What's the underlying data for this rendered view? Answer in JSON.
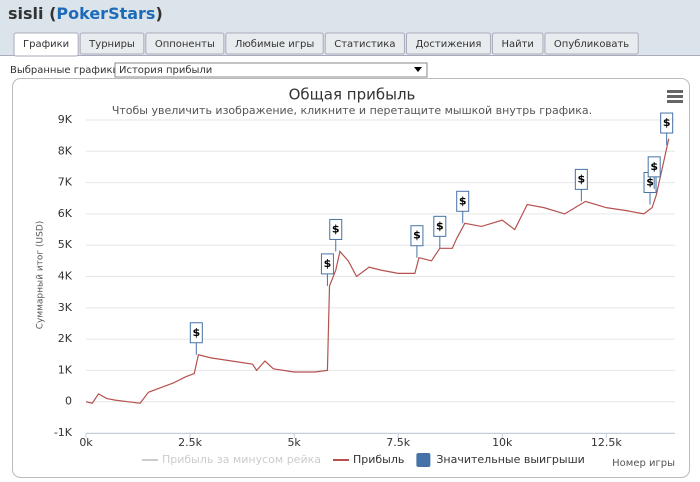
{
  "header": {
    "parts": [
      "sisli (",
      "PokerStars",
      ")"
    ]
  },
  "tabs": {
    "items": [
      "Графики",
      "Турниры",
      "Оппоненты",
      "Любимые игры",
      "Статистика",
      "Достижения",
      "Найти",
      "Опубликовать"
    ],
    "active": 0
  },
  "selector": {
    "label": "Выбранные графики:",
    "value": "История прибыли"
  },
  "chart_data": {
    "type": "line",
    "title": "Общая прибыль",
    "subtitle": "Чтобы увеличить изображение, кликните и перетащите мышкой внутрь графика.",
    "y_label": "Суммарный итог (USD)",
    "x_label": "Номер игры",
    "xlim": [
      0,
      14150
    ],
    "ylim": [
      -1000,
      9000
    ],
    "xticks": [
      {
        "value": 0,
        "label": "0k"
      },
      {
        "value": 2500,
        "label": "2.5k"
      },
      {
        "value": 5000,
        "label": "5k"
      },
      {
        "value": 7500,
        "label": "7.5k"
      },
      {
        "value": 10000,
        "label": "10k"
      },
      {
        "value": 12500,
        "label": "12.5k"
      }
    ],
    "yticks": [
      {
        "value": -1000,
        "label": "-1K"
      },
      0,
      {
        "value": 1000,
        "label": "1K"
      },
      {
        "value": 2000,
        "label": "2K"
      },
      {
        "value": 3000,
        "label": "3K"
      },
      {
        "value": 4000,
        "label": "4K"
      },
      {
        "value": 5000,
        "label": "5K"
      },
      {
        "value": 6000,
        "label": "6K"
      },
      {
        "value": 7000,
        "label": "7K"
      },
      {
        "value": 8000,
        "label": "8K"
      },
      {
        "value": 9000,
        "label": "9K"
      }
    ],
    "grid": true,
    "series": [
      {
        "name": "Прибыль за минусом рейка",
        "color": "#cccccc"
      },
      {
        "name": "Прибыль",
        "color": "#b5524f",
        "x": [
          0,
          150,
          300,
          500,
          700,
          1000,
          1300,
          1500,
          1800,
          2100,
          2400,
          2600,
          2700,
          3000,
          3500,
          4000,
          4100,
          4300,
          4500,
          5000,
          5500,
          5800,
          5850,
          6000,
          6100,
          6300,
          6500,
          6800,
          7100,
          7500,
          7900,
          8000,
          8300,
          8500,
          8800,
          8900,
          9100,
          9500,
          10000,
          10300,
          10600,
          11000,
          11500,
          12000,
          12500,
          13000,
          13400,
          13600,
          13700,
          13850,
          14000
        ],
        "values": [
          0,
          -50,
          250,
          100,
          50,
          0,
          -50,
          300,
          450,
          600,
          800,
          900,
          1500,
          1400,
          1300,
          1200,
          1000,
          1300,
          1050,
          950,
          950,
          1000,
          3700,
          4200,
          4800,
          4500,
          4000,
          4300,
          4200,
          4100,
          4100,
          4600,
          4500,
          4900,
          4900,
          5200,
          5700,
          5600,
          5800,
          5500,
          6300,
          6200,
          6000,
          6400,
          6200,
          6100,
          6000,
          6200,
          6600,
          7500,
          8400
        ]
      }
    ],
    "flags": {
      "name": "Значительные выигрыши",
      "color": "#4572a7",
      "label": "$",
      "x": [
        2650,
        5800,
        6000,
        7950,
        8500,
        9050,
        11900,
        13550,
        13650,
        13950
      ],
      "y": [
        1500,
        3700,
        4800,
        4600,
        4900,
        5700,
        6400,
        6300,
        6800,
        8200
      ]
    }
  }
}
